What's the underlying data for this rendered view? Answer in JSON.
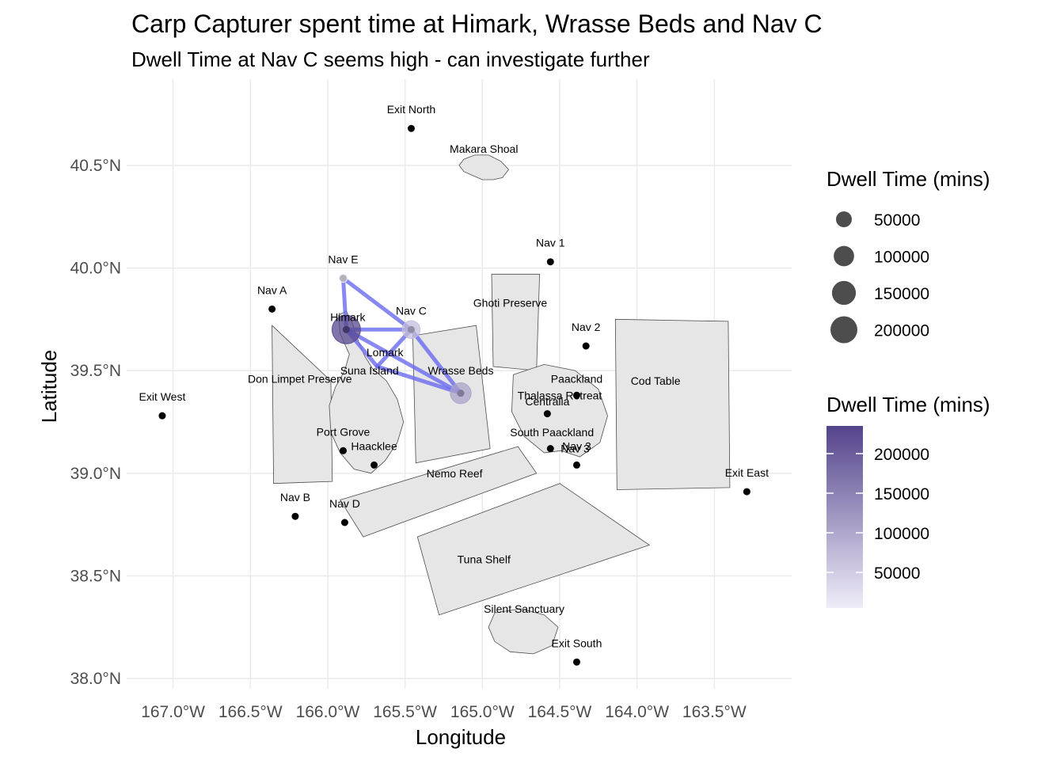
{
  "title": "Carp Capturer spent time at Himark, Wrasse Beds and Nav C",
  "subtitle": "Dwell Time at Nav C seems high - can investigate further",
  "chart_data": {
    "type": "map",
    "xlabel": "Longitude",
    "ylabel": "Latitude",
    "xlim": [
      -167.3,
      -163.0
    ],
    "ylim": [
      37.95,
      40.92
    ],
    "x_ticks": [
      -167.0,
      -166.5,
      -166.0,
      -165.5,
      -165.0,
      -164.5,
      -164.0,
      -163.5
    ],
    "x_tick_labels": [
      "167.0°W",
      "166.5°W",
      "166.0°W",
      "165.5°W",
      "165.0°W",
      "164.5°W",
      "164.0°W",
      "163.5°W"
    ],
    "y_ticks": [
      38.0,
      38.5,
      39.0,
      39.5,
      40.0,
      40.5
    ],
    "y_tick_labels": [
      "38.0°N",
      "38.5°N",
      "39.0°N",
      "39.5°N",
      "40.0°N",
      "40.5°N"
    ],
    "grid": true,
    "regions": [
      {
        "name": "Makara Shoal",
        "label_at": [
          -164.99,
          40.58
        ],
        "polygon": [
          [
            -165.12,
            40.53
          ],
          [
            -165.05,
            40.55
          ],
          [
            -164.96,
            40.55
          ],
          [
            -164.88,
            40.52
          ],
          [
            -164.83,
            40.48
          ],
          [
            -164.87,
            40.44
          ],
          [
            -164.93,
            40.43
          ],
          [
            -165.0,
            40.43
          ],
          [
            -165.06,
            40.45
          ],
          [
            -165.12,
            40.47
          ],
          [
            -165.15,
            40.5
          ]
        ]
      },
      {
        "name": "Don Limpet Preserve",
        "label_at": [
          -166.18,
          39.46
        ],
        "polygon": [
          [
            -166.36,
            39.72
          ],
          [
            -165.98,
            39.45
          ],
          [
            -165.97,
            38.96
          ],
          [
            -166.35,
            38.95
          ]
        ]
      },
      {
        "name": "Suna Island",
        "label_at": [
          -165.73,
          39.5
        ],
        "polygon": [
          [
            -165.88,
            39.79
          ],
          [
            -165.84,
            39.73
          ],
          [
            -165.8,
            39.64
          ],
          [
            -165.76,
            39.57
          ],
          [
            -165.71,
            39.51
          ],
          [
            -165.62,
            39.45
          ],
          [
            -165.55,
            39.36
          ],
          [
            -165.51,
            39.25
          ],
          [
            -165.55,
            39.15
          ],
          [
            -165.63,
            39.06
          ],
          [
            -165.72,
            39.0
          ],
          [
            -165.83,
            39.02
          ],
          [
            -165.92,
            39.1
          ],
          [
            -165.98,
            39.2
          ],
          [
            -165.99,
            39.33
          ],
          [
            -165.95,
            39.42
          ],
          [
            -165.89,
            39.5
          ],
          [
            -165.86,
            39.58
          ],
          [
            -165.92,
            39.68
          ],
          [
            -165.93,
            39.77
          ]
        ]
      },
      {
        "name": "Lomark",
        "label_at": [
          -165.63,
          39.59
        ]
      },
      {
        "name": "Himark",
        "label_at": [
          -165.87,
          39.76
        ]
      },
      {
        "name": "Wrasse Beds",
        "label_at": [
          -165.14,
          39.5
        ],
        "polygon": [
          [
            -165.45,
            39.67
          ],
          [
            -165.04,
            39.72
          ],
          [
            -164.95,
            39.12
          ],
          [
            -165.43,
            39.05
          ]
        ]
      },
      {
        "name": "Ghoti Preserve",
        "label_at": [
          -164.82,
          39.83
        ],
        "polygon": [
          [
            -164.94,
            39.97
          ],
          [
            -164.63,
            39.97
          ],
          [
            -164.65,
            39.5
          ],
          [
            -164.93,
            39.52
          ]
        ]
      },
      {
        "name": "Cod Table",
        "label_at": [
          -163.88,
          39.45
        ],
        "polygon": [
          [
            -164.14,
            39.75
          ],
          [
            -163.41,
            39.74
          ],
          [
            -163.4,
            38.93
          ],
          [
            -164.13,
            38.92
          ]
        ]
      },
      {
        "name": "Paackland",
        "label_at": [
          -164.39,
          39.46
        ],
        "polygon": [
          [
            -164.8,
            39.48
          ],
          [
            -164.6,
            39.53
          ],
          [
            -164.4,
            39.5
          ],
          [
            -164.25,
            39.41
          ],
          [
            -164.19,
            39.28
          ],
          [
            -164.24,
            39.15
          ],
          [
            -164.37,
            39.08
          ],
          [
            -164.49,
            39.11
          ],
          [
            -164.6,
            39.1
          ],
          [
            -164.73,
            39.18
          ],
          [
            -164.81,
            39.3
          ]
        ]
      },
      {
        "name": "Thalassa Retreat",
        "label_at": [
          -164.5,
          39.38
        ]
      },
      {
        "name": "Centralia",
        "label_at": [
          -164.58,
          39.35
        ]
      },
      {
        "name": "South Paackland",
        "label_at": [
          -164.55,
          39.2
        ]
      },
      {
        "name": "Nemo Reef",
        "label_at": [
          -165.18,
          39.0
        ],
        "polygon": [
          [
            -165.92,
            38.87
          ],
          [
            -164.77,
            39.13
          ],
          [
            -164.65,
            39.0
          ],
          [
            -165.77,
            38.69
          ]
        ]
      },
      {
        "name": "Tuna Shelf",
        "label_at": [
          -164.99,
          38.58
        ],
        "polygon": [
          [
            -165.42,
            38.69
          ],
          [
            -164.5,
            38.95
          ],
          [
            -163.92,
            38.65
          ],
          [
            -165.28,
            38.31
          ]
        ]
      },
      {
        "name": "Silent Sanctuary",
        "label_at": [
          -164.73,
          38.34
        ],
        "polygon": [
          [
            -164.92,
            38.32
          ],
          [
            -164.75,
            38.34
          ],
          [
            -164.6,
            38.31
          ],
          [
            -164.51,
            38.25
          ],
          [
            -164.55,
            38.16
          ],
          [
            -164.67,
            38.12
          ],
          [
            -164.82,
            38.13
          ],
          [
            -164.92,
            38.18
          ],
          [
            -164.96,
            38.25
          ]
        ]
      }
    ],
    "locations": [
      {
        "name": "Exit North",
        "lon": -165.46,
        "lat": 40.68
      },
      {
        "name": "Nav E",
        "lon": -165.9,
        "lat": 39.95
      },
      {
        "name": "Nav 1",
        "lon": -164.56,
        "lat": 40.03
      },
      {
        "name": "Nav A",
        "lon": -166.36,
        "lat": 39.8
      },
      {
        "name": "Himark",
        "lon": -165.88,
        "lat": 39.7
      },
      {
        "name": "Nav C",
        "lon": -165.46,
        "lat": 39.7
      },
      {
        "name": "Nav 2",
        "lon": -164.33,
        "lat": 39.62
      },
      {
        "name": "Exit West",
        "lon": -167.07,
        "lat": 39.28
      },
      {
        "name": "Wrasse Beds",
        "lon": -165.14,
        "lat": 39.39
      },
      {
        "name": "Paackland",
        "lon": -164.39,
        "lat": 39.38
      },
      {
        "name": "Centralia",
        "lon": -164.58,
        "lat": 39.29
      },
      {
        "name": "Port Grove",
        "lon": -165.9,
        "lat": 39.11
      },
      {
        "name": "Haacklee",
        "lon": -165.7,
        "lat": 39.04
      },
      {
        "name": "Nav 3",
        "lon": -164.39,
        "lat": 39.04
      },
      {
        "name": "South Paackland",
        "lon": -164.56,
        "lat": 39.12
      },
      {
        "name": "Exit East",
        "lon": -163.29,
        "lat": 38.91
      },
      {
        "name": "Nav B",
        "lon": -166.21,
        "lat": 38.79
      },
      {
        "name": "Nav D",
        "lon": -165.89,
        "lat": 38.76
      },
      {
        "name": "Exit South",
        "lon": -164.39,
        "lat": 38.08
      }
    ],
    "label_only": [
      {
        "name": "Nav 3",
        "at": [
          -164.4,
          39.12
        ]
      }
    ],
    "path": {
      "color": "#6a6af0",
      "segments": [
        [
          [
            -165.88,
            39.7
          ],
          [
            -165.9,
            39.95
          ]
        ],
        [
          [
            -165.9,
            39.95
          ],
          [
            -165.46,
            39.7
          ]
        ],
        [
          [
            -165.88,
            39.7
          ],
          [
            -165.46,
            39.7
          ]
        ],
        [
          [
            -165.46,
            39.7
          ],
          [
            -165.14,
            39.39
          ]
        ],
        [
          [
            -165.88,
            39.7
          ],
          [
            -165.14,
            39.39
          ]
        ],
        [
          [
            -165.46,
            39.7
          ],
          [
            -165.68,
            39.52
          ]
        ],
        [
          [
            -165.68,
            39.52
          ],
          [
            -165.14,
            39.39
          ]
        ],
        [
          [
            -165.88,
            39.7
          ],
          [
            -165.68,
            39.52
          ]
        ]
      ]
    },
    "dwell": [
      {
        "name": "Himark",
        "lon": -165.88,
        "lat": 39.7,
        "value": 230000
      },
      {
        "name": "Nav C",
        "lon": -165.46,
        "lat": 39.7,
        "value": 70000
      },
      {
        "name": "Wrasse Beds",
        "lon": -165.14,
        "lat": 39.39,
        "value": 105000
      },
      {
        "name": "Nav E",
        "lon": -165.9,
        "lat": 39.95,
        "value": 5000
      }
    ],
    "size_legend": {
      "title": "Dwell Time (mins)",
      "breaks": [
        50000,
        100000,
        150000,
        200000
      ],
      "labels": [
        "50000",
        "100000",
        "150000",
        "200000"
      ]
    },
    "color_legend": {
      "title": "Dwell Time (mins)",
      "min": 5000,
      "max": 235000,
      "low_color": "#efedf9",
      "high_color": "#54438b",
      "breaks": [
        50000,
        100000,
        150000,
        200000
      ],
      "labels": [
        "50000",
        "100000",
        "150000",
        "200000"
      ]
    }
  }
}
